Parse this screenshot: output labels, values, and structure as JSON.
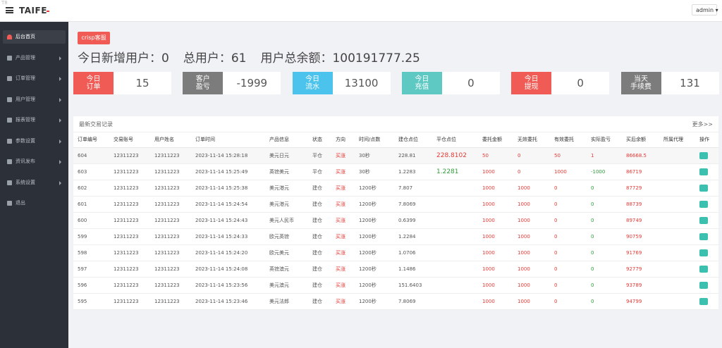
{
  "header": {
    "badge": "T8",
    "logo": "TAIFE",
    "user": "admin"
  },
  "sidebar": {
    "items": [
      "后台首页",
      "产品管理",
      "订单管理",
      "用户管理",
      "报表管理",
      "参数设置",
      "资讯发布",
      "系统设置",
      "退出"
    ]
  },
  "toolbar": {
    "button": "crisp客服"
  },
  "stats": [
    {
      "label": "今日新增用户：",
      "value": "0"
    },
    {
      "label": "总用户：",
      "value": "61"
    },
    {
      "label": "用户总余额：",
      "value": "100191777.25"
    }
  ],
  "cards": [
    {
      "label": [
        "今日",
        "订单"
      ],
      "value": "15"
    },
    {
      "label": [
        "客户",
        "盈亏"
      ],
      "value": "-1999"
    },
    {
      "label": [
        "今日",
        "流水"
      ],
      "value": "13100"
    },
    {
      "label": [
        "今日",
        "充值"
      ],
      "value": "0"
    },
    {
      "label": [
        "今日",
        "提现"
      ],
      "value": "0"
    },
    {
      "label": [
        "当天",
        "手续费"
      ],
      "value": "131"
    }
  ],
  "table": {
    "title": "最新交易记录",
    "more": "更多>>",
    "columns": [
      "订单编号",
      "交易账号",
      "用户姓名",
      "订单时间",
      "产品信息",
      "状态",
      "方向",
      "时间/点数",
      "建仓点位",
      "平仓点位",
      "委托金额",
      "无效委托",
      "有效委托",
      "实际盈亏",
      "买后余额",
      "所属代理",
      "操作"
    ],
    "rows": [
      [
        "604",
        "12311223",
        "12311223",
        "2023-11-14 15:28:18",
        "美元日元",
        "平仓",
        "买涨",
        "30秒",
        "228.81",
        "228.8102",
        "50",
        "0",
        "50",
        "1",
        "86668.5"
      ],
      [
        "603",
        "12311223",
        "12311223",
        "2023-11-14 15:25:49",
        "英镑美元",
        "平仓",
        "买涨",
        "30秒",
        "1.2283",
        "1.2281",
        "1000",
        "0",
        "1000",
        "-1000",
        "86719"
      ],
      [
        "602",
        "12311223",
        "12311223",
        "2023-11-14 15:25:38",
        "美元港元",
        "建仓",
        "买涨",
        "1200秒",
        "7.807",
        null,
        "1000",
        "1000",
        "0",
        "0",
        "87729"
      ],
      [
        "601",
        "12311223",
        "12311223",
        "2023-11-14 15:24:54",
        "美元港元",
        "建仓",
        "买涨",
        "1200秒",
        "7.8069",
        null,
        "1000",
        "1000",
        "0",
        "0",
        "88739"
      ],
      [
        "600",
        "12311223",
        "12311223",
        "2023-11-14 15:24:43",
        "美元人民币",
        "建仓",
        "买涨",
        "1200秒",
        "0.6399",
        null,
        "1000",
        "1000",
        "0",
        "0",
        "89749"
      ],
      [
        "599",
        "12311223",
        "12311223",
        "2023-11-14 15:24:33",
        "欧元英镑",
        "建仓",
        "买涨",
        "1200秒",
        "1.2284",
        null,
        "1000",
        "1000",
        "0",
        "0",
        "90759"
      ],
      [
        "598",
        "12311223",
        "12311223",
        "2023-11-14 15:24:20",
        "欧元美元",
        "建仓",
        "买涨",
        "1200秒",
        "1.0706",
        null,
        "1000",
        "1000",
        "0",
        "0",
        "91769"
      ],
      [
        "597",
        "12311223",
        "12311223",
        "2023-11-14 15:24:08",
        "英镑澳元",
        "建仓",
        "买涨",
        "1200秒",
        "1.1486",
        null,
        "1000",
        "1000",
        "0",
        "0",
        "92779"
      ],
      [
        "596",
        "12311223",
        "12311223",
        "2023-11-14 15:23:56",
        "美元澳元",
        "建仓",
        "买涨",
        "1200秒",
        "151.6403",
        null,
        "1000",
        "1000",
        "0",
        "0",
        "93789"
      ],
      [
        "595",
        "12311223",
        "12311223",
        "2023-11-14 15:23:46",
        "美元法郎",
        "建仓",
        "买涨",
        "1200秒",
        "7.8069",
        null,
        "1000",
        "1000",
        "0",
        "0",
        "94799"
      ]
    ]
  }
}
